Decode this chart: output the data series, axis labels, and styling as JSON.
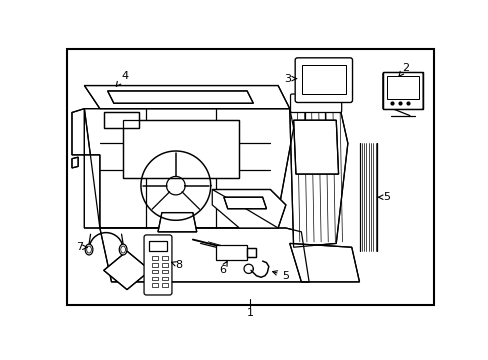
{
  "bg_color": "#ffffff",
  "line_color": "#000000",
  "border_lw": 1.5,
  "line_lw": 0.9,
  "figsize": [
    4.89,
    3.6
  ],
  "dpi": 100,
  "label_fontsize": 8,
  "xlim": [
    0,
    489
  ],
  "ylim": [
    0,
    360
  ]
}
